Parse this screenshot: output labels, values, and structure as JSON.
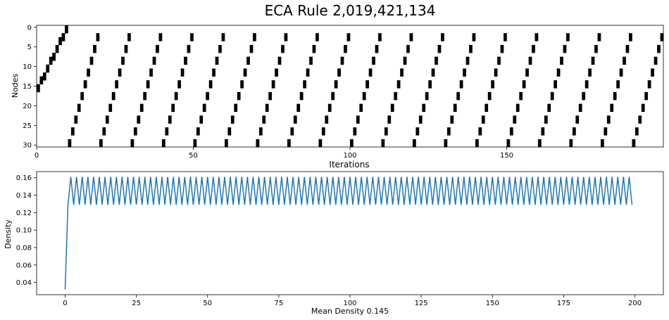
{
  "title": "ECA Rule 2,019,421,134",
  "chart_data": [
    {
      "type": "heatmap",
      "ylabel": "Nodes",
      "xlabel": "Iterations",
      "rows": 31,
      "cols": 200,
      "xlim": [
        0,
        200
      ],
      "ylim": [
        30,
        0
      ],
      "xticks": [
        0,
        50,
        100,
        150
      ],
      "yticks": [
        0,
        5,
        10,
        15,
        20,
        25,
        30
      ],
      "colormap": {
        "0": "#ffffff",
        "1": "#000000"
      },
      "pattern": {
        "description": "binary cell state per node (row) and iteration (column)",
        "initial_state": {
          "active_nodes": [
            15,
            16
          ]
        },
        "transient_slope": -0.5,
        "period": 10,
        "active_cells": [
          [
            15,
            0
          ],
          [
            16,
            0
          ],
          [
            13,
            1
          ],
          [
            14,
            1
          ],
          [
            12,
            2
          ],
          [
            13,
            2
          ],
          [
            10,
            3
          ],
          [
            11,
            3
          ],
          [
            8,
            4
          ],
          [
            9,
            4
          ],
          [
            7,
            5
          ],
          [
            8,
            5
          ],
          [
            5,
            6
          ],
          [
            6,
            6
          ],
          [
            3,
            7
          ],
          [
            4,
            7
          ],
          [
            2,
            8
          ],
          [
            3,
            8
          ],
          [
            0,
            9
          ],
          [
            1,
            9
          ]
        ],
        "wave_step_rows_per_iteration": -1.5,
        "wave_thickness_rows": 2
      }
    },
    {
      "type": "line",
      "xlabel": "Mean Density 0.145",
      "ylabel": "Density",
      "xlim": [
        -10,
        210
      ],
      "ylim": [
        0.026,
        0.167
      ],
      "xticks": [
        0,
        25,
        50,
        75,
        100,
        125,
        150,
        175,
        200
      ],
      "yticks": [
        0.04,
        0.06,
        0.08,
        0.1,
        0.12,
        0.14,
        0.16
      ],
      "ytick_labels": [
        "0.04",
        "0.06",
        "0.08",
        "0.10",
        "0.12",
        "0.14",
        "0.16"
      ],
      "color": "#1f77b4",
      "series": [
        {
          "x_start": 0,
          "x_end": 199,
          "values_head": [
            0.032,
            0.129,
            0.161
          ],
          "alternating_values": [
            0.161,
            0.129
          ],
          "alternating_from_x": 2
        }
      ]
    }
  ]
}
